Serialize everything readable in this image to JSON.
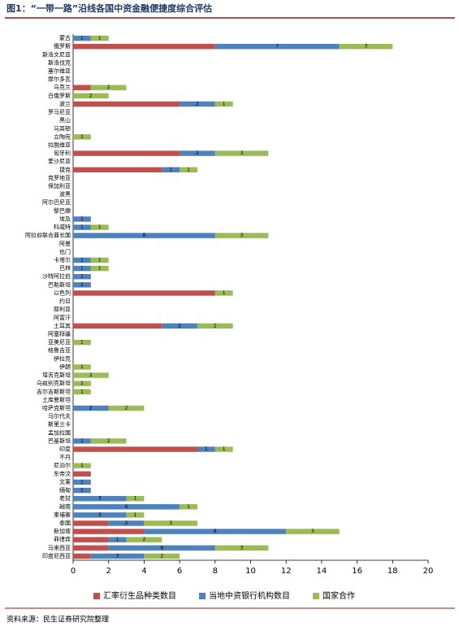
{
  "chart_data": {
    "type": "stacked-barh",
    "title": "图1：“一带一路”沿线各国中资金融便捷度综合评估",
    "categories": [
      "蒙古",
      "俄罗斯",
      "斯洛文尼亚",
      "斯洛伐克",
      "塞尔维亚",
      "摩尔多瓦",
      "乌克兰",
      "白俄罗斯",
      "波兰",
      "罗马尼亚",
      "黑山",
      "马其顿",
      "立陶宛",
      "拉脱维亚",
      "匈牙利",
      "爱沙尼亚",
      "捷克",
      "克罗地亚",
      "保加利亚",
      "波黑",
      "阿尔巴尼亚",
      "黎巴嫩",
      "埃及",
      "科威特",
      "阿拉伯联合酋长国",
      "阿曼",
      "也门",
      "卡塔尔",
      "巴林",
      "沙特阿拉伯",
      "巴勒斯坦",
      "以色列",
      "约旦",
      "叙利亚",
      "阿富汗",
      "土耳其",
      "阿塞拜疆",
      "亚美尼亚",
      "格鲁吉亚",
      "伊拉克",
      "伊朗",
      "塔吉克斯坦",
      "乌兹别克斯坦",
      "吉尔吉斯斯坦",
      "土库曼斯坦",
      "哈萨克斯坦",
      "马尔代夫",
      "斯里兰卡",
      "孟加拉国",
      "巴基斯坦",
      "印度",
      "不丹",
      "尼泊尔",
      "东帝汶",
      "文莱",
      "缅甸",
      "老挝",
      "越南",
      "柬埔寨",
      "泰国",
      "新加坡",
      "菲律宾",
      "马来西亚",
      "印度尼西亚"
    ],
    "series": [
      {
        "name": "汇率衍生品种类数目",
        "color": "#c0504d",
        "values": [
          0,
          8,
          0,
          0,
          0,
          0,
          1,
          0,
          6,
          0,
          0,
          0,
          0,
          0,
          6,
          0,
          5,
          0,
          0,
          0,
          0,
          0,
          0,
          0,
          0,
          0,
          0,
          0,
          0,
          0,
          0,
          8,
          0,
          0,
          0,
          5,
          0,
          0,
          0,
          0,
          0,
          0,
          0,
          0,
          0,
          0,
          0,
          0,
          0,
          0,
          7,
          0,
          0,
          1,
          0,
          0,
          0,
          0,
          0,
          2,
          4,
          2,
          2,
          1
        ]
      },
      {
        "name": "当地中资银行机构数目",
        "color": "#4f81bd",
        "values": [
          1,
          7,
          0,
          0,
          0,
          0,
          0,
          0,
          2,
          0,
          0,
          0,
          0,
          0,
          2,
          0,
          1,
          0,
          0,
          0,
          0,
          0,
          1,
          1,
          8,
          0,
          0,
          1,
          1,
          1,
          1,
          0,
          0,
          0,
          0,
          2,
          0,
          0,
          0,
          0,
          0,
          0,
          0,
          0,
          0,
          2,
          0,
          0,
          0,
          1,
          1,
          0,
          0,
          0,
          1,
          1,
          3,
          6,
          3,
          2,
          8,
          1,
          6,
          3
        ]
      },
      {
        "name": "国家合作",
        "color": "#9bbb59",
        "values": [
          1,
          3,
          0,
          0,
          0,
          0,
          2,
          2,
          1,
          0,
          0,
          0,
          1,
          0,
          3,
          0,
          1,
          0,
          0,
          0,
          0,
          0,
          0,
          1,
          3,
          0,
          0,
          1,
          1,
          0,
          0,
          1,
          0,
          0,
          0,
          2,
          0,
          1,
          0,
          0,
          1,
          2,
          1,
          1,
          0,
          2,
          0,
          0,
          0,
          2,
          1,
          0,
          1,
          0,
          0,
          0,
          1,
          1,
          1,
          3,
          3,
          2,
          3,
          2
        ]
      }
    ],
    "xlim": [
      0,
      20
    ],
    "xticks": [
      0,
      2,
      4,
      6,
      8,
      10,
      12,
      14,
      16,
      18,
      20
    ],
    "legend": "bottom"
  },
  "source": "资料来源：民生证券研究院整理"
}
